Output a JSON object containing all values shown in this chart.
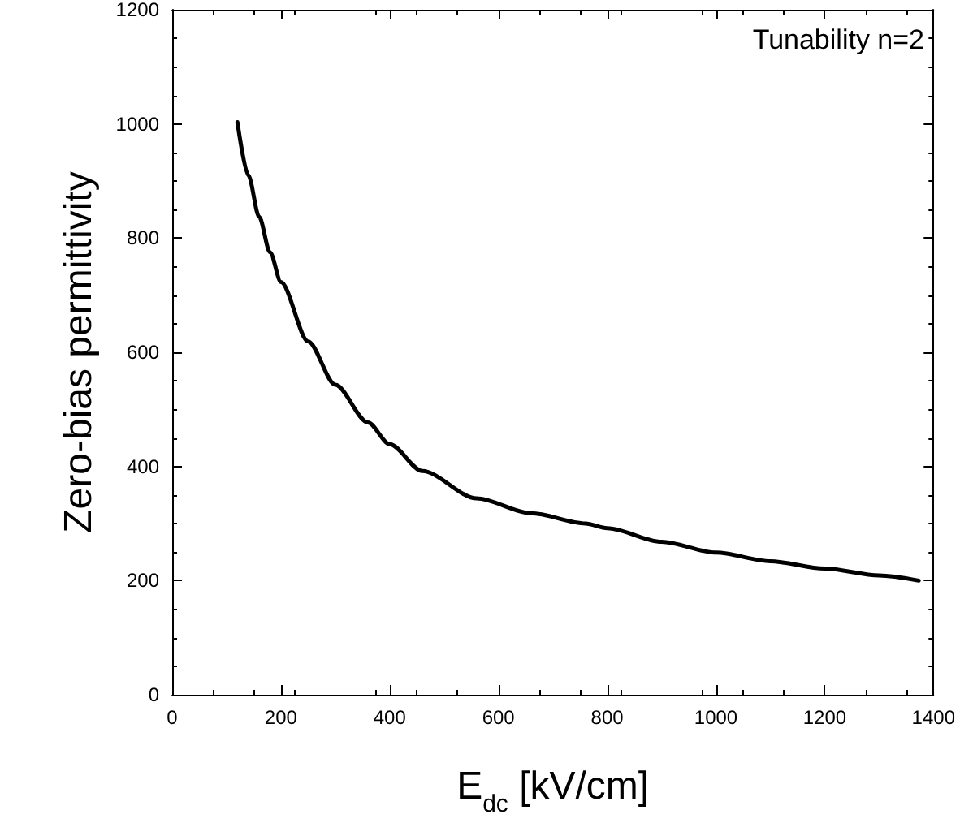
{
  "chart_data": {
    "type": "line",
    "xlabel": "E$_{dc}$ [kV/cm]",
    "ylabel": "Zero-bias permittivity",
    "annotations": [
      "Tunability n=2"
    ],
    "series": [
      {
        "color": "#000000",
        "x": [
          120,
          140,
          160,
          180,
          200,
          250,
          300,
          360,
          400,
          460,
          560,
          660,
          760,
          800,
          900,
          1000,
          1100,
          1200,
          1300,
          1373
        ],
        "values": [
          1003,
          910,
          837,
          775,
          723,
          619,
          543,
          477,
          439,
          392,
          344,
          318,
          300,
          292,
          268,
          249,
          234,
          221,
          209,
          200
        ]
      }
    ],
    "xlim": [
      0,
      1400
    ],
    "xticks": [
      0,
      200,
      400,
      600,
      800,
      1000,
      1200,
      1400
    ],
    "ylim": [
      0,
      1200
    ],
    "yticks": [
      0,
      200,
      400,
      600,
      800,
      1000,
      1200
    ],
    "grid": false,
    "marker": "none",
    "line_style": "solid"
  }
}
